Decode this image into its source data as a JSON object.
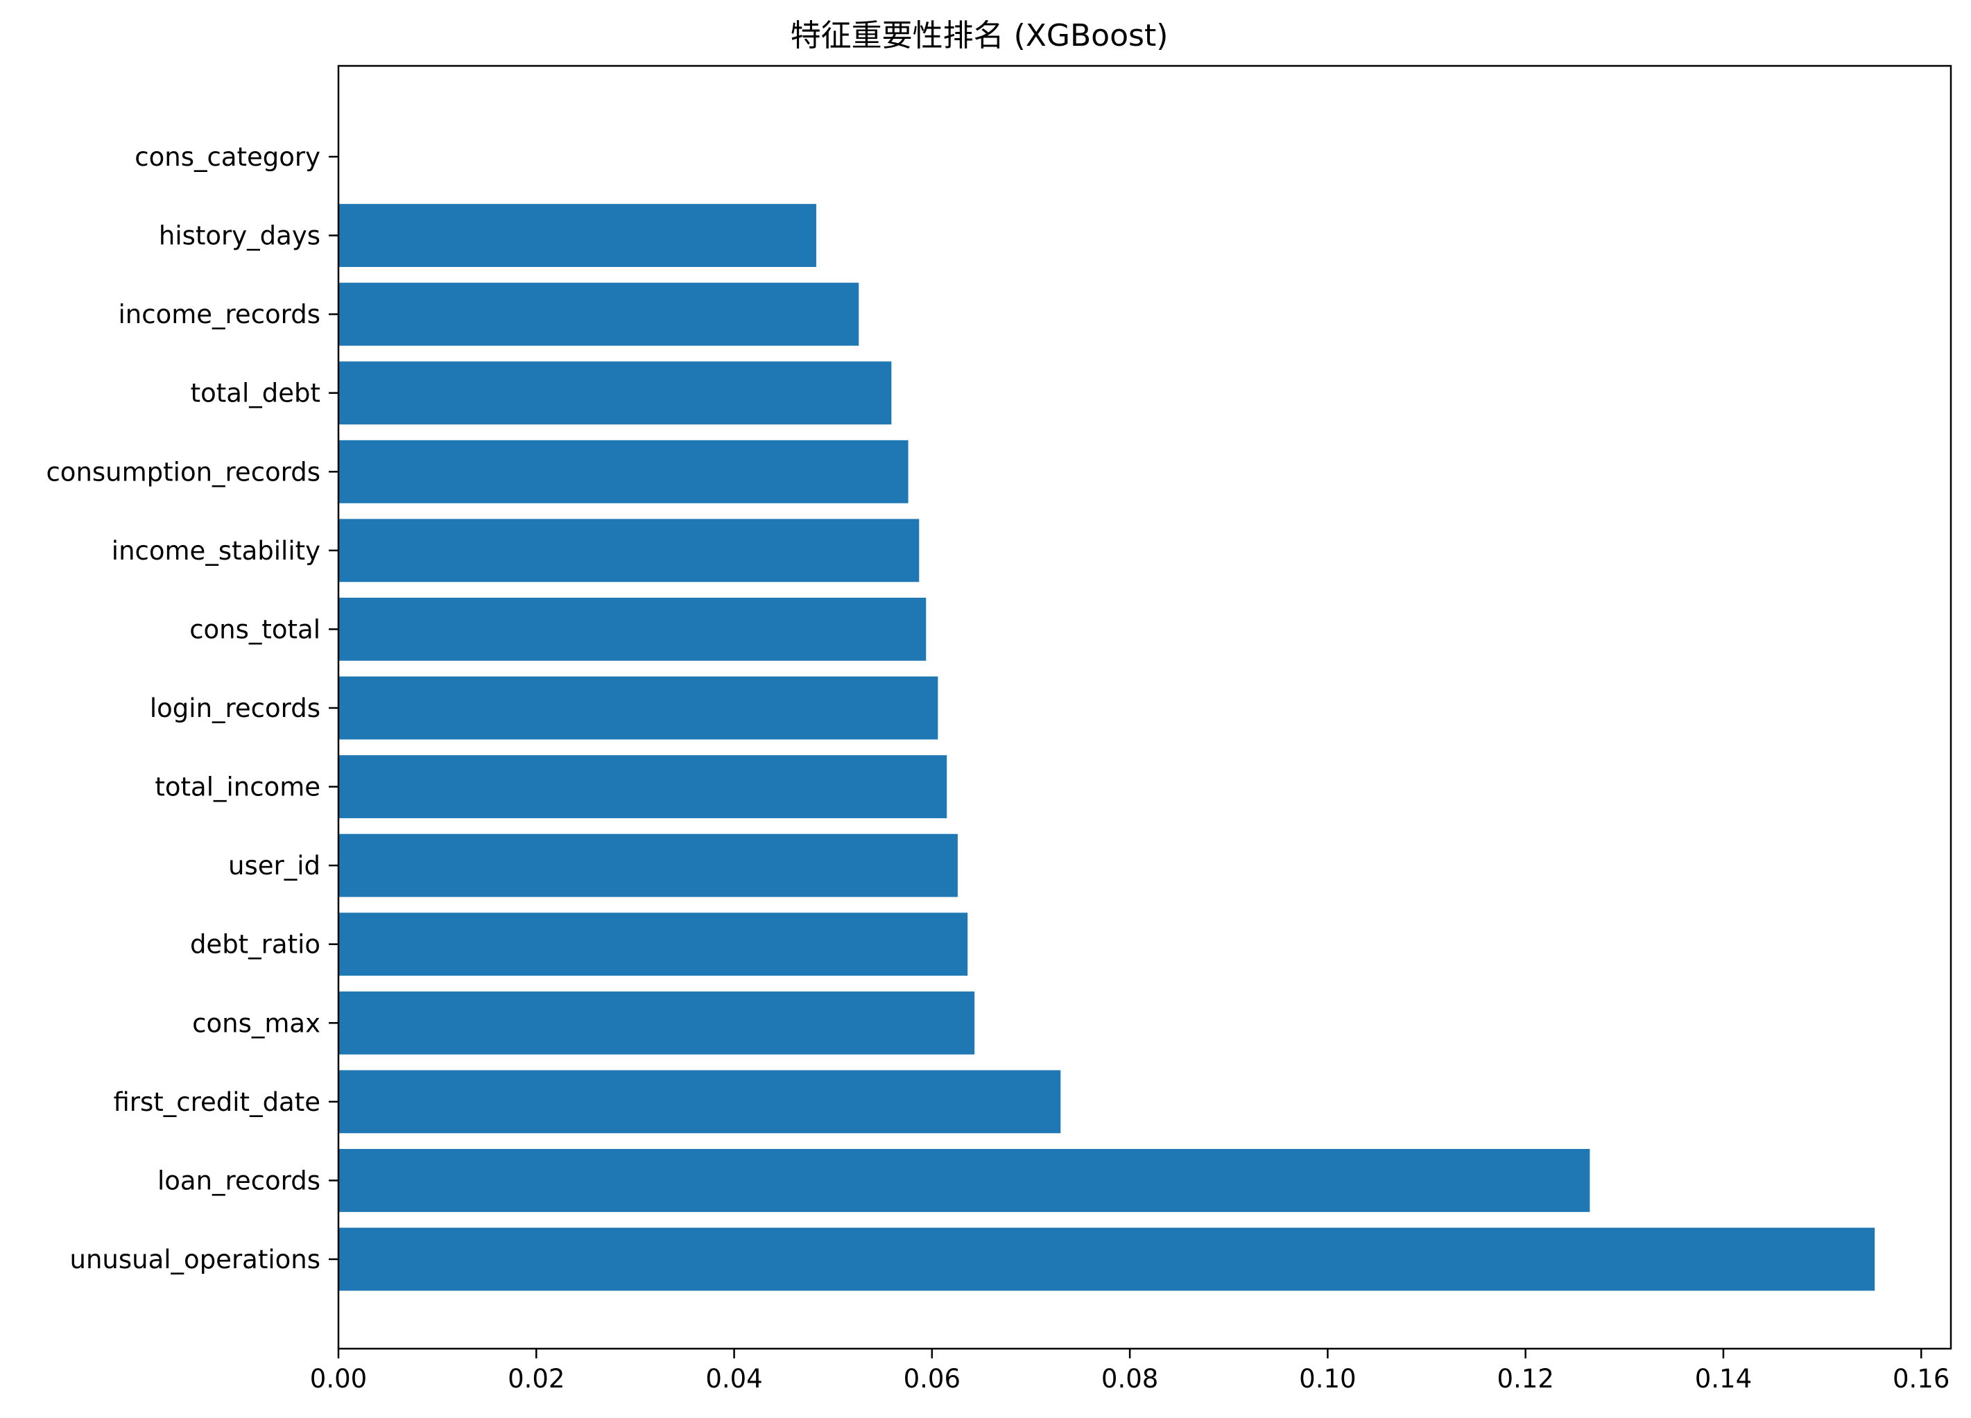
{
  "chart_data": {
    "type": "bar",
    "orientation": "horizontal",
    "title": "特征重要性排名 (XGBoost)",
    "xlabel": "",
    "ylabel": "",
    "categories": [
      "unusual_operations",
      "loan_records",
      "first_credit_date",
      "cons_max",
      "debt_ratio",
      "user_id",
      "total_income",
      "login_records",
      "cons_total",
      "income_stability",
      "consumption_records",
      "total_debt",
      "income_records",
      "history_days",
      "cons_category"
    ],
    "values": [
      0.1553,
      0.1265,
      0.073,
      0.0643,
      0.0636,
      0.0626,
      0.0615,
      0.0606,
      0.0594,
      0.0587,
      0.0576,
      0.0559,
      0.0526,
      0.0483,
      0.0
    ],
    "xlim": [
      0,
      0.163
    ],
    "xticks": [
      "0.00",
      "0.02",
      "0.04",
      "0.06",
      "0.08",
      "0.10",
      "0.12",
      "0.14",
      "0.16"
    ],
    "grid": false,
    "bar_color": "#1f77b4"
  }
}
